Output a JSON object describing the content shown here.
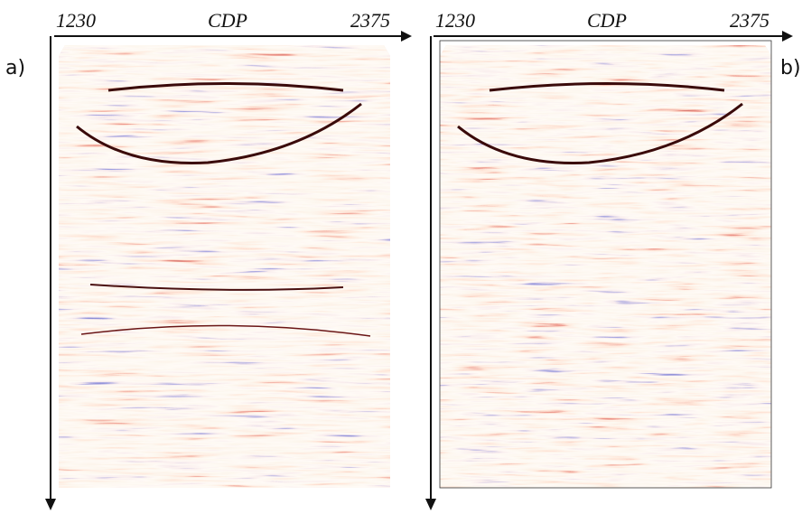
{
  "panels": [
    {
      "label": "a)",
      "x_start": "1230",
      "x_title": "CDP",
      "x_end": "2375"
    },
    {
      "label": "b)",
      "x_start": "1230",
      "x_title": "CDP",
      "x_end": "2375"
    }
  ]
}
